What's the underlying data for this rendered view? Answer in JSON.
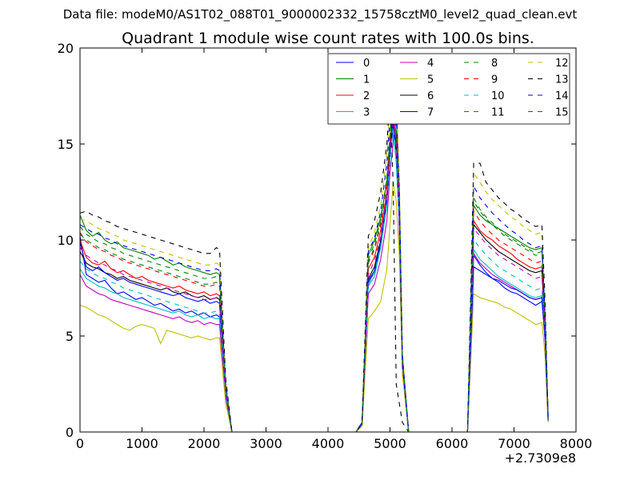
{
  "suptitle": "Data file: modeM0/AS1T02_088T01_9000002332_15758cztM0_level2_quad_clean.evt",
  "chart_data": {
    "type": "line",
    "title": "Quadrant 1 module wise count rates with 100.0s bins.",
    "xlabel": "",
    "ylabel": "",
    "x_offset_label": "+2.7309e8",
    "xlim": [
      0,
      8000
    ],
    "ylim": [
      0,
      20
    ],
    "xticks": [
      0,
      1000,
      2000,
      3000,
      4000,
      5000,
      6000,
      7000,
      8000
    ],
    "yticks": [
      0,
      5,
      10,
      15,
      20
    ],
    "grid": false,
    "legend": {
      "placement": "top-right",
      "columns": 4
    },
    "x": [
      0,
      100,
      200,
      300,
      400,
      500,
      600,
      700,
      800,
      900,
      1000,
      1100,
      1200,
      1300,
      1400,
      1500,
      1600,
      1700,
      1800,
      1900,
      2000,
      2100,
      2200,
      2250,
      2350,
      2450,
      4450,
      4550,
      4650,
      4750,
      4850,
      4950,
      5000,
      5050,
      5100,
      5150,
      5200,
      5300,
      6250,
      6350,
      6450,
      6550,
      6650,
      6750,
      6850,
      6950,
      7050,
      7150,
      7250,
      7350,
      7450,
      7500,
      7550
    ],
    "series": [
      {
        "name": "0",
        "color": "#0000ff",
        "dash": "solid",
        "values": [
          10.2,
          8.2,
          8.0,
          7.8,
          7.9,
          7.5,
          7.2,
          7.3,
          7.1,
          6.9,
          7.0,
          6.8,
          6.6,
          6.7,
          6.5,
          6.3,
          6.4,
          6.2,
          6.3,
          6.1,
          6.2,
          6.0,
          6.1,
          6.0,
          2.0,
          0,
          0,
          0.4,
          7.8,
          8.3,
          9.8,
          12.0,
          14.5,
          16.0,
          14.2,
          11.0,
          3.5,
          0,
          0,
          9.2,
          8.7,
          8.3,
          8.0,
          7.8,
          7.5,
          7.3,
          7.2,
          7.0,
          6.8,
          6.6,
          6.8,
          5.0,
          0.7
        ]
      },
      {
        "name": "1",
        "color": "#008000",
        "dash": "solid",
        "values": [
          11.3,
          10.5,
          10.2,
          10.4,
          10.0,
          9.8,
          9.9,
          9.6,
          9.5,
          9.4,
          9.3,
          9.2,
          9.0,
          9.1,
          8.9,
          8.7,
          8.8,
          8.6,
          8.5,
          8.4,
          8.3,
          8.2,
          8.3,
          8.2,
          2.5,
          0,
          0,
          0.5,
          9.2,
          10.0,
          11.2,
          13.0,
          15.2,
          16.8,
          15.5,
          12.5,
          4.0,
          0,
          0,
          11.8,
          11.3,
          11.0,
          10.8,
          10.6,
          10.4,
          10.2,
          10.0,
          9.8,
          9.6,
          9.5,
          9.6,
          6.0,
          0.8
        ]
      },
      {
        "name": "2",
        "color": "#ff0000",
        "dash": "solid",
        "values": [
          10.0,
          9.1,
          8.8,
          8.7,
          8.9,
          8.5,
          8.3,
          8.4,
          8.2,
          8.0,
          8.1,
          7.9,
          7.8,
          7.7,
          7.6,
          7.5,
          7.6,
          7.4,
          7.3,
          7.2,
          7.3,
          7.1,
          7.2,
          7.1,
          2.2,
          0,
          0,
          0.4,
          8.5,
          9.1,
          10.5,
          12.5,
          14.8,
          16.4,
          15.0,
          11.8,
          3.8,
          0,
          0,
          11.0,
          10.5,
          10.2,
          10.0,
          9.7,
          9.5,
          9.3,
          9.0,
          8.8,
          8.6,
          8.5,
          8.6,
          5.5,
          0.7
        ]
      },
      {
        "name": "3",
        "color": "#00bfbf",
        "dash": "solid",
        "values": [
          8.5,
          8.0,
          7.8,
          7.6,
          7.5,
          7.3,
          7.2,
          7.0,
          6.9,
          6.8,
          6.7,
          6.6,
          6.5,
          6.4,
          6.3,
          6.2,
          6.3,
          6.1,
          6.0,
          6.1,
          5.9,
          6.0,
          5.9,
          5.9,
          1.9,
          0,
          0,
          0.4,
          7.6,
          8.1,
          9.6,
          11.8,
          14.2,
          15.8,
          14.0,
          10.8,
          3.4,
          0,
          0,
          9.5,
          9.0,
          8.7,
          8.4,
          8.1,
          7.9,
          7.7,
          7.5,
          7.3,
          7.1,
          7.0,
          7.1,
          5.0,
          0.7
        ]
      },
      {
        "name": "4",
        "color": "#bf00bf",
        "dash": "solid",
        "values": [
          8.2,
          7.6,
          7.4,
          7.2,
          7.1,
          6.9,
          6.8,
          6.7,
          6.6,
          6.5,
          6.4,
          6.3,
          6.2,
          6.1,
          6.0,
          5.9,
          6.0,
          5.8,
          5.7,
          5.8,
          5.6,
          5.7,
          5.6,
          5.6,
          1.8,
          0,
          0,
          0.4,
          7.2,
          7.7,
          9.0,
          11.0,
          13.5,
          15.0,
          19.0,
          10.5,
          3.3,
          0,
          0,
          9.3,
          8.8,
          8.5,
          8.2,
          8.0,
          7.8,
          7.6,
          7.4,
          7.2,
          7.0,
          6.9,
          7.0,
          4.8,
          0.6
        ]
      },
      {
        "name": "5",
        "color": "#bfbf00",
        "dash": "solid",
        "values": [
          6.6,
          6.5,
          6.3,
          6.1,
          6.0,
          5.8,
          5.6,
          5.4,
          5.3,
          5.5,
          5.6,
          5.5,
          5.4,
          4.6,
          5.3,
          5.2,
          5.1,
          5.0,
          4.9,
          5.0,
          4.9,
          4.8,
          4.9,
          4.9,
          1.5,
          0,
          0,
          0.3,
          5.9,
          6.3,
          6.8,
          8.5,
          10.8,
          13.0,
          12.0,
          9.2,
          3.0,
          0,
          0,
          7.2,
          7.0,
          6.9,
          6.8,
          6.7,
          6.5,
          6.4,
          6.2,
          6.0,
          5.8,
          5.6,
          5.7,
          4.0,
          0.5
        ]
      },
      {
        "name": "6",
        "color": "#000000",
        "dash": "solid",
        "values": [
          9.4,
          8.8,
          8.6,
          8.5,
          8.3,
          8.2,
          8.0,
          8.1,
          7.9,
          7.8,
          7.7,
          7.6,
          7.5,
          7.4,
          7.5,
          7.3,
          7.2,
          7.3,
          7.1,
          7.0,
          7.1,
          6.9,
          7.0,
          6.9,
          2.1,
          0,
          0,
          0.4,
          8.0,
          8.6,
          10.0,
          12.2,
          14.6,
          16.2,
          14.8,
          11.5,
          3.6,
          0,
          0,
          10.8,
          10.4,
          10.0,
          9.7,
          9.4,
          9.2,
          9.0,
          8.8,
          8.6,
          8.4,
          8.3,
          8.4,
          5.4,
          0.7
        ]
      },
      {
        "name": "7",
        "color": "#0000ff",
        "dash": "solid",
        "values": [
          9.9,
          8.6,
          8.4,
          8.6,
          8.3,
          8.1,
          7.9,
          8.0,
          7.8,
          7.7,
          7.6,
          7.5,
          7.4,
          7.3,
          7.2,
          7.1,
          7.2,
          7.0,
          6.9,
          6.8,
          6.9,
          6.7,
          6.8,
          6.7,
          2.0,
          0,
          0,
          0.4,
          7.9,
          8.4,
          9.9,
          12.1,
          14.4,
          16.1,
          14.6,
          11.3,
          3.5,
          0,
          0,
          8.6,
          8.4,
          8.2,
          8.0,
          7.9,
          7.7,
          7.5,
          7.4,
          7.2,
          7.0,
          6.9,
          7.0,
          4.8,
          0.6
        ]
      },
      {
        "name": "8",
        "color": "#008000",
        "dash": "dashed",
        "values": [
          10.7,
          10.3,
          10.1,
          9.9,
          9.8,
          9.6,
          9.5,
          9.3,
          9.2,
          9.1,
          9.0,
          8.9,
          8.8,
          8.7,
          8.6,
          8.5,
          8.4,
          8.3,
          8.2,
          8.1,
          8.0,
          8.0,
          8.1,
          8.0,
          2.4,
          0,
          0,
          0.5,
          9.0,
          9.8,
          11.0,
          13.2,
          15.5,
          17.0,
          15.8,
          12.3,
          3.9,
          0,
          0,
          12.2,
          11.6,
          11.2,
          10.9,
          10.6,
          10.3,
          10.1,
          9.9,
          9.7,
          9.5,
          9.3,
          9.4,
          6.0,
          0.8
        ]
      },
      {
        "name": "9",
        "color": "#ff0000",
        "dash": "dashed",
        "values": [
          10.4,
          9.9,
          9.7,
          9.5,
          9.4,
          9.2,
          9.1,
          8.9,
          8.8,
          8.7,
          8.6,
          8.5,
          8.4,
          8.3,
          8.2,
          8.1,
          8.0,
          7.9,
          7.8,
          7.7,
          7.6,
          7.6,
          7.7,
          7.6,
          2.3,
          0,
          0,
          0.4,
          8.8,
          9.5,
          10.8,
          12.9,
          15.0,
          16.6,
          15.3,
          12.0,
          3.8,
          0,
          0,
          11.5,
          11.0,
          10.6,
          10.3,
          10.0,
          9.8,
          9.6,
          9.4,
          9.2,
          9.0,
          8.8,
          8.9,
          5.8,
          0.7
        ]
      },
      {
        "name": "10",
        "color": "#00bfbf",
        "dash": "dashed",
        "values": [
          8.9,
          8.5,
          8.3,
          8.1,
          8.0,
          7.8,
          7.7,
          7.5,
          7.4,
          7.3,
          7.2,
          7.1,
          7.0,
          6.9,
          6.8,
          6.7,
          6.6,
          6.5,
          6.4,
          6.3,
          6.2,
          6.2,
          6.3,
          6.2,
          2.0,
          0,
          0,
          0.4,
          7.7,
          8.3,
          9.7,
          12.0,
          14.3,
          15.9,
          14.5,
          11.2,
          3.5,
          0,
          0,
          10.0,
          9.6,
          9.2,
          8.9,
          8.6,
          8.4,
          8.2,
          8.0,
          7.8,
          7.6,
          7.4,
          7.5,
          5.2,
          0.7
        ]
      },
      {
        "name": "11",
        "color": "#bf00bf",
        "dash": "dashed",
        "values": [
          9.6,
          9.2,
          9.0,
          8.8,
          8.7,
          8.5,
          8.4,
          8.2,
          8.1,
          8.0,
          7.9,
          7.8,
          7.7,
          7.6,
          7.5,
          7.4,
          7.3,
          7.2,
          7.1,
          7.0,
          6.9,
          6.9,
          7.0,
          6.9,
          2.1,
          0,
          0,
          0.4,
          8.2,
          8.9,
          10.2,
          12.4,
          14.8,
          16.5,
          15.0,
          11.6,
          3.6,
          0,
          0,
          10.6,
          10.2,
          9.8,
          9.5,
          9.2,
          9.0,
          8.8,
          8.6,
          8.4,
          8.2,
          8.0,
          8.1,
          5.4,
          0.7
        ]
      },
      {
        "name": "12",
        "color": "#bfbf00",
        "dash": "dashed",
        "values": [
          11.1,
          11.0,
          10.8,
          10.6,
          10.5,
          10.3,
          10.2,
          10.0,
          9.9,
          9.8,
          9.7,
          9.6,
          9.5,
          9.4,
          9.3,
          9.2,
          9.1,
          9.0,
          8.9,
          8.8,
          8.7,
          8.7,
          8.8,
          8.7,
          2.6,
          0,
          0,
          0.5,
          9.6,
          10.4,
          11.8,
          14.5,
          17.0,
          18.8,
          17.5,
          13.5,
          4.2,
          0,
          0,
          13.5,
          13.0,
          12.5,
          12.1,
          11.8,
          11.5,
          11.2,
          11.0,
          10.7,
          10.5,
          10.3,
          10.4,
          6.5,
          0.8
        ]
      },
      {
        "name": "13",
        "color": "#000000",
        "dash": "dashed",
        "values": [
          11.4,
          11.5,
          11.3,
          11.2,
          11.0,
          10.9,
          10.7,
          10.6,
          10.5,
          10.4,
          10.3,
          10.2,
          10.1,
          10.0,
          9.9,
          9.8,
          9.7,
          9.6,
          9.5,
          9.4,
          9.3,
          9.3,
          9.6,
          9.5,
          2.8,
          0,
          0,
          0.5,
          10.2,
          11.0,
          12.5,
          15.0,
          17.5,
          13.0,
          2.5,
          1.5,
          0.5,
          0,
          0,
          14.0,
          14.0,
          13.0,
          12.6,
          12.2,
          11.9,
          11.6,
          11.4,
          11.1,
          10.9,
          10.7,
          10.8,
          6.8,
          0.9
        ]
      },
      {
        "name": "14",
        "color": "#0000ff",
        "dash": "dashed",
        "values": [
          10.8,
          10.6,
          10.4,
          10.3,
          10.1,
          10.0,
          9.8,
          9.7,
          9.6,
          9.5,
          9.4,
          9.3,
          9.2,
          9.1,
          9.0,
          8.9,
          8.8,
          8.7,
          8.6,
          8.5,
          8.4,
          8.4,
          8.5,
          8.4,
          2.5,
          0,
          0,
          0.5,
          9.4,
          10.1,
          11.5,
          14.0,
          16.4,
          17.8,
          16.5,
          12.8,
          4.0,
          0,
          0,
          12.8,
          12.2,
          11.8,
          11.4,
          11.1,
          10.8,
          10.5,
          10.3,
          10.0,
          9.8,
          9.6,
          9.7,
          6.2,
          0.8
        ]
      },
      {
        "name": "15",
        "color": "#008000",
        "dash": "dashed",
        "values": [
          10.3,
          10.0,
          9.8,
          9.6,
          9.5,
          9.3,
          9.2,
          9.0,
          8.9,
          8.8,
          8.7,
          8.6,
          8.5,
          8.4,
          8.3,
          8.2,
          8.1,
          8.0,
          7.9,
          7.8,
          7.7,
          7.7,
          7.8,
          7.7,
          2.3,
          0,
          0,
          0.4,
          8.9,
          9.6,
          11.0,
          13.3,
          15.6,
          17.2,
          15.9,
          12.4,
          3.9,
          0,
          0,
          12.0,
          11.5,
          11.1,
          10.8,
          10.5,
          10.2,
          10.0,
          9.8,
          9.6,
          9.4,
          9.2,
          9.3,
          5.9,
          0.7
        ]
      }
    ]
  }
}
